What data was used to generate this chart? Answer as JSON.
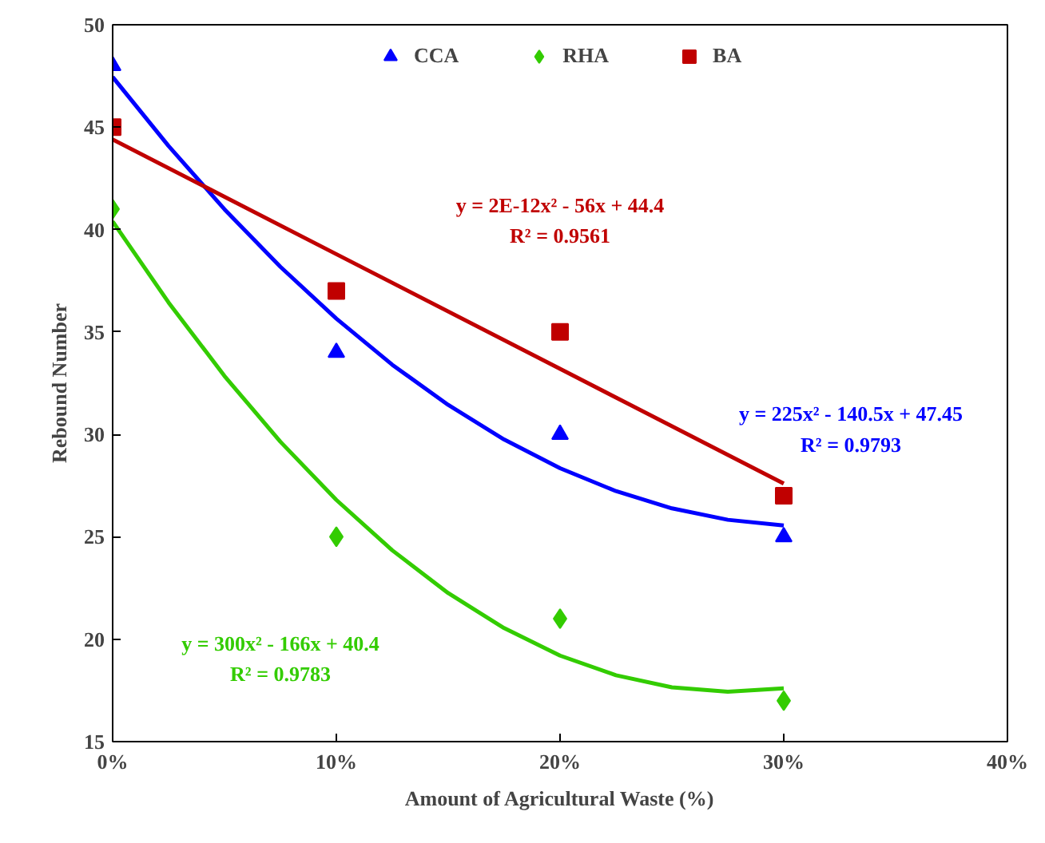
{
  "chart_data": {
    "type": "scatter",
    "xlabel": "Amount of Agricultural Waste (%)",
    "ylabel": "Rebound Number",
    "x": [
      0,
      0.1,
      0.2,
      0.3
    ],
    "xlim": [
      0,
      0.4
    ],
    "xticks": [
      {
        "value": 0,
        "label": "0%"
      },
      {
        "value": 0.1,
        "label": "10%"
      },
      {
        "value": 0.2,
        "label": "20%"
      },
      {
        "value": 0.3,
        "label": "30%"
      },
      {
        "value": 0.4,
        "label": "40%"
      }
    ],
    "ylim": [
      15,
      50
    ],
    "yticks": [
      15,
      20,
      25,
      30,
      35,
      40,
      45,
      50
    ],
    "grid": false,
    "legend": "top",
    "series": [
      {
        "name": "CCA",
        "color": "#0000ff",
        "marker": "triangle",
        "values": [
          48,
          34,
          30,
          25
        ]
      },
      {
        "name": "RHA",
        "color": "#33cc00",
        "marker": "diamond",
        "values": [
          41,
          25,
          21,
          17
        ]
      },
      {
        "name": "BA",
        "color": "#c00000",
        "marker": "square",
        "values": [
          45,
          37,
          35,
          27
        ]
      },
      {
        "type": "line",
        "color": "#0000ff",
        "marker": "none",
        "x": [
          0,
          0.025,
          0.05,
          0.075,
          0.1,
          0.125,
          0.15,
          0.175,
          0.2,
          0.225,
          0.25,
          0.275,
          0.3
        ],
        "values": [
          47.45,
          44.08,
          40.99,
          38.18,
          35.65,
          33.4,
          31.44,
          29.75,
          28.35,
          27.23,
          26.39,
          25.83,
          25.55
        ]
      },
      {
        "type": "line",
        "color": "#33cc00",
        "marker": "none",
        "x": [
          0,
          0.025,
          0.05,
          0.075,
          0.1,
          0.125,
          0.15,
          0.175,
          0.2,
          0.225,
          0.25,
          0.275,
          0.3
        ],
        "values": [
          40.4,
          36.44,
          32.85,
          29.64,
          26.8,
          24.34,
          22.25,
          20.54,
          19.2,
          18.24,
          17.65,
          17.44,
          17.6
        ]
      },
      {
        "type": "line",
        "color": "#c00000",
        "marker": "none",
        "x": [
          0,
          0.1,
          0.2,
          0.3
        ],
        "values": [
          44.4,
          38.8,
          33.2,
          27.6
        ]
      }
    ],
    "annotations": [
      "y = 225x² - 140.5x + 47.45",
      "R² = 0.9793",
      "y = 300x² - 166x + 40.4",
      "R² = 0.9783",
      "y = 2E-12x² - 56x + 44.4",
      "R² = 0.9561"
    ]
  }
}
